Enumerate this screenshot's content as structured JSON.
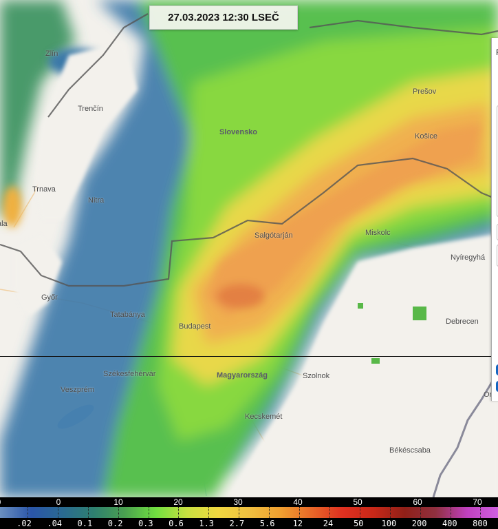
{
  "timestamp": "27.03.2023 12:30 LSEČ",
  "map": {
    "countries": [
      {
        "name": "Slovensko"
      },
      {
        "name": "Magyarország"
      }
    ],
    "cities": [
      {
        "name": "Zlín"
      },
      {
        "name": "Trenčín"
      },
      {
        "name": "Prešov"
      },
      {
        "name": "Košice"
      },
      {
        "name": "Trnava"
      },
      {
        "name": "Nitra"
      },
      {
        "name": "ala"
      },
      {
        "name": "Salgótarján"
      },
      {
        "name": "Miskolc"
      },
      {
        "name": "Nyíregyhá"
      },
      {
        "name": "Győr"
      },
      {
        "name": "Tatabánya"
      },
      {
        "name": "Budapest"
      },
      {
        "name": "Debrecen"
      },
      {
        "name": "Székesfehérvár"
      },
      {
        "name": "Veszprém"
      },
      {
        "name": "Szolnok"
      },
      {
        "name": "Kecskemét"
      },
      {
        "name": "Békéscsaba"
      },
      {
        "name": "Or"
      }
    ]
  },
  "side_panel": {
    "title": "F"
  },
  "legend": {
    "dbz_labels": [
      "0",
      "0",
      "10",
      "20",
      "30",
      "40",
      "50",
      "60",
      "70"
    ],
    "rate_labels": [
      ".02",
      ".04",
      "0.1",
      "0.2",
      "0.3",
      "0.6",
      "1.3",
      "2.7",
      "5.6",
      "12",
      "24",
      "50",
      "100",
      "200",
      "400",
      "800"
    ],
    "colors": [
      "#6a8fc0",
      "#2a55a8",
      "#2a6a92",
      "#2e8070",
      "#4aa050",
      "#70e040",
      "#c8e040",
      "#f0d840",
      "#f0c040",
      "#f0a030",
      "#e86828",
      "#e03020",
      "#c82818",
      "#902018",
      "#903040",
      "#c040c0",
      "#d060e0"
    ]
  }
}
